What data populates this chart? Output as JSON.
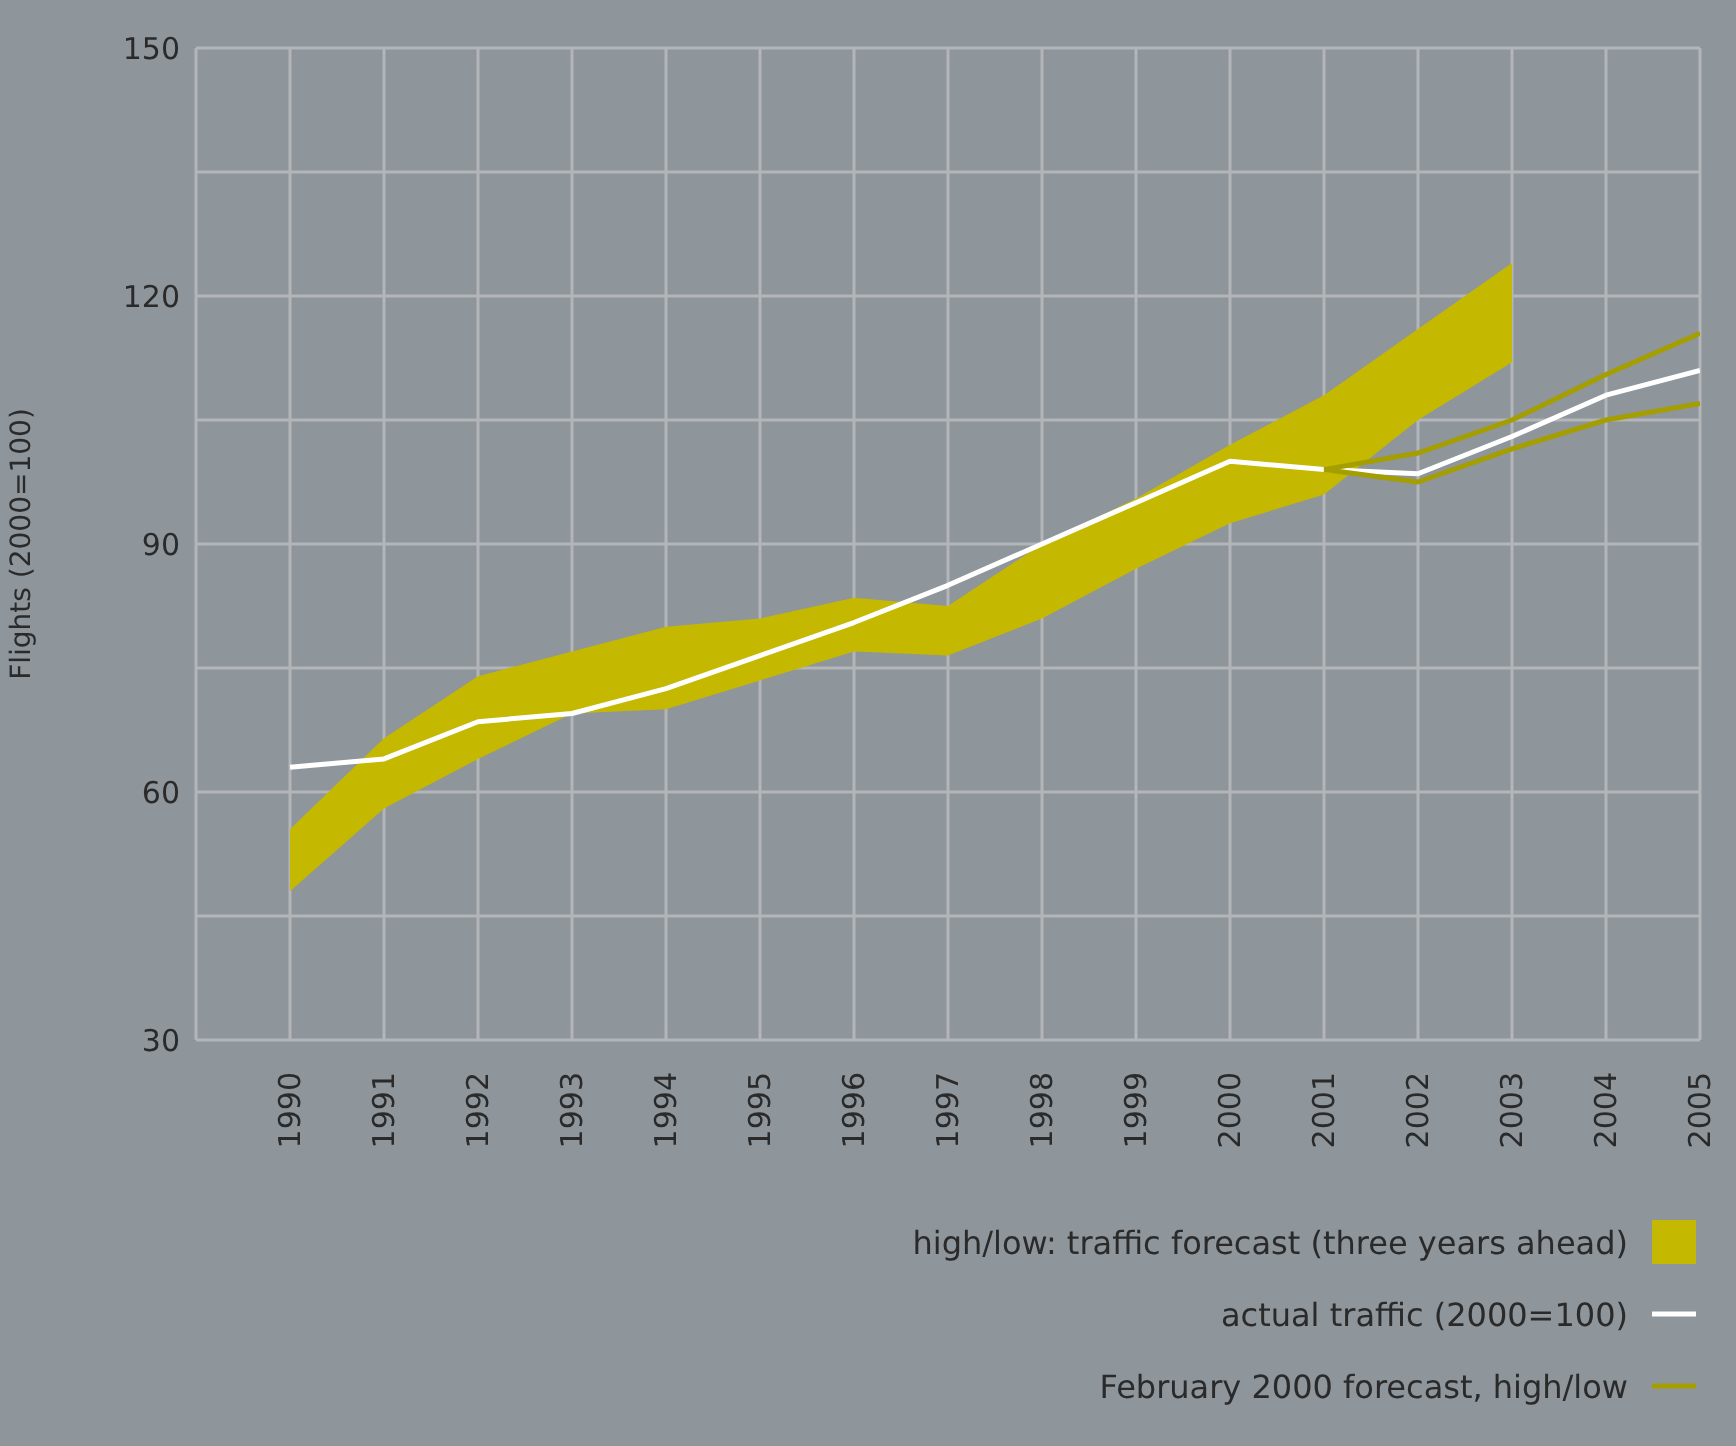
{
  "chart_data": {
    "type": "line",
    "ylabel": "Flights (2000=100)",
    "x": [
      1990,
      1991,
      1992,
      1993,
      1994,
      1995,
      1996,
      1997,
      1998,
      1999,
      2000,
      2001,
      2002,
      2003,
      2004,
      2005
    ],
    "xlim": [
      1989,
      2005
    ],
    "xticks": [
      1990,
      1991,
      1992,
      1993,
      1994,
      1995,
      1996,
      1997,
      1998,
      1999,
      2000,
      2001,
      2002,
      2003,
      2004,
      2005
    ],
    "ylim": [
      30,
      150
    ],
    "yticks": [
      30,
      {
        "value": 45,
        "label": null
      },
      60,
      {
        "value": 75,
        "label": null
      },
      90,
      {
        "value": 105,
        "label": null
      },
      120,
      {
        "value": 135,
        "label": null
      },
      150
    ],
    "grid": true,
    "legend": "bottom right",
    "series": [
      {
        "type": "area",
        "name": "high/low: traffic forecast (three years ahead)",
        "color": "#c5b800",
        "values": [
          null,
          null,
          null,
          null,
          null,
          null,
          null,
          null,
          null,
          null,
          null,
          null,
          null,
          null,
          null,
          null
        ],
        "lower": [
          48,
          58,
          64,
          69.5,
          70,
          73.5,
          77,
          76.5,
          81,
          87,
          92.5,
          96,
          105,
          112,
          null,
          null
        ],
        "upper": [
          55.5,
          66.5,
          74,
          77,
          80,
          81,
          83.5,
          82.5,
          90,
          95.5,
          102,
          108,
          116,
          124,
          null,
          null
        ]
      },
      {
        "name": "actual traffic (2000=100)",
        "color": "#ffffff",
        "values": [
          63,
          64,
          68.5,
          69.5,
          72.5,
          76.5,
          80.5,
          85,
          90,
          95,
          100,
          99,
          98.5,
          103,
          108,
          111
        ]
      },
      {
        "name": "February 2000 forecast, high/low",
        "color": "#a59e00",
        "values": [
          null,
          null,
          null,
          null,
          null,
          null,
          null,
          null,
          null,
          null,
          null,
          99,
          101,
          105,
          110.5,
          115.5
        ]
      },
      {
        "color": "#a59e00",
        "values": [
          null,
          null,
          null,
          null,
          null,
          null,
          null,
          null,
          null,
          null,
          null,
          99,
          97.5,
          101.5,
          105,
          107
        ]
      }
    ]
  }
}
